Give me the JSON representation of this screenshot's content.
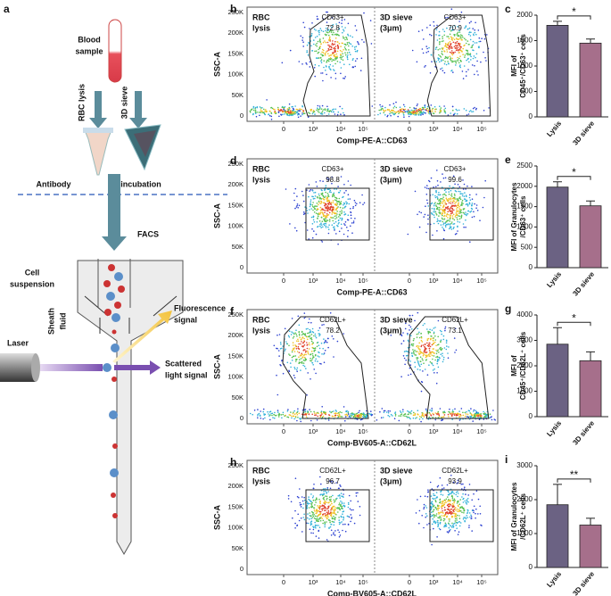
{
  "panel_a": {
    "label": "a",
    "blood_sample": [
      "Blood",
      "sample"
    ],
    "rbc_lysis": "RBC lysis",
    "sieve": "3D sieve",
    "antibody": "Antibody",
    "incubation": "incubation",
    "facs": "FACS",
    "cell_suspension": [
      "Cell",
      "suspension"
    ],
    "sheath_fluid": [
      "Sheath",
      "fluid"
    ],
    "fluorescence": [
      "Fluorescence",
      "signal"
    ],
    "laser": "Laser",
    "scattered": [
      "Scattered",
      "light signal"
    ]
  },
  "flow_panels": [
    {
      "label": "b",
      "y_label": "SSC-A",
      "x_label": "Comp-PE-A::CD63",
      "yticks": [
        "0",
        "50K",
        "100K",
        "150K",
        "200K",
        "250K"
      ],
      "xticks": [
        "0",
        "10³",
        "10⁴",
        "10⁵"
      ],
      "samples": [
        {
          "name": [
            "RBC",
            "lysis"
          ],
          "gate": "CD63+",
          "percent": 72.8
        },
        {
          "name": [
            "3D sieve",
            "(3μm)"
          ],
          "gate": "CD63+",
          "percent": 70.9
        }
      ]
    },
    {
      "label": "d",
      "y_label": "SSC-A",
      "x_label": "Comp-PE-A::CD63",
      "yticks": [
        "0",
        "50K",
        "100K",
        "150K",
        "200K",
        "250K"
      ],
      "xticks": [
        "0",
        "10³",
        "10⁴",
        "10⁵"
      ],
      "samples": [
        {
          "name": [
            "RBC",
            "lysis"
          ],
          "gate": "CD63+",
          "percent": 98.8
        },
        {
          "name": [
            "3D sieve",
            "(3μm)"
          ],
          "gate": "CD63+",
          "percent": 99.6
        }
      ]
    },
    {
      "label": "f",
      "y_label": "SSC-A",
      "x_label": "Comp-BV605-A::CD62L",
      "yticks": [
        "0",
        "50K",
        "100K",
        "150K",
        "200K",
        "250K"
      ],
      "xticks": [
        "0",
        "10³",
        "10⁴",
        "10⁵"
      ],
      "samples": [
        {
          "name": [
            "RBC",
            "lysis"
          ],
          "gate": "CD62L+",
          "percent": 78.2
        },
        {
          "name": [
            "3D sieve",
            "(3μm)"
          ],
          "gate": "CD62L+",
          "percent": 73.1
        }
      ]
    },
    {
      "label": "h",
      "y_label": "SSC-A",
      "x_label": "Comp-BV605-A::CD62L",
      "yticks": [
        "0",
        "50K",
        "100K",
        "150K",
        "200K",
        "250K"
      ],
      "xticks": [
        "0",
        "10³",
        "10⁴",
        "10⁵"
      ],
      "samples": [
        {
          "name": [
            "RBC",
            "lysis"
          ],
          "gate": "CD62L+",
          "percent": 96.7
        },
        {
          "name": [
            "3D sieve",
            "(3μm)"
          ],
          "gate": "CD62L+",
          "percent": 93.9
        }
      ]
    }
  ],
  "chart_data": [
    {
      "type": "bar",
      "label": "c",
      "y_label": [
        "MFI of",
        "CD45⁺/CD63⁺ cells"
      ],
      "categories": [
        "Lysis",
        "3D sieve"
      ],
      "values": [
        1800,
        1450
      ],
      "errors": [
        80,
        80
      ],
      "colors": [
        "#6b6283",
        "#a66f8b"
      ],
      "ylim": [
        0,
        2000
      ],
      "yticks": [
        0,
        500,
        1000,
        1500,
        2000
      ],
      "significance": "*"
    },
    {
      "type": "bar",
      "label": "e",
      "y_label": [
        "MFI of Granulocytes",
        "/CD63⁺ cells"
      ],
      "categories": [
        "Lysis",
        "3D sieve"
      ],
      "values": [
        1980,
        1520
      ],
      "errors": [
        130,
        120
      ],
      "colors": [
        "#6b6283",
        "#a66f8b"
      ],
      "ylim": [
        0,
        2500
      ],
      "yticks": [
        0,
        500,
        1000,
        1500,
        2000,
        2500
      ],
      "significance": "*"
    },
    {
      "type": "bar",
      "label": "g",
      "y_label": [
        "MFI of",
        "CD45⁺/CD62L⁺ cells"
      ],
      "categories": [
        "Lysis",
        "3D sieve"
      ],
      "values": [
        2850,
        2200
      ],
      "errors": [
        650,
        350
      ],
      "colors": [
        "#6b6283",
        "#a66f8b"
      ],
      "ylim": [
        0,
        4000
      ],
      "yticks": [
        0,
        1000,
        2000,
        3000,
        4000
      ],
      "significance": "*"
    },
    {
      "type": "bar",
      "label": "i",
      "y_label": [
        "MFI of Granulocytes",
        "/CD62L⁺ cells"
      ],
      "categories": [
        "Lysis",
        "3D sieve"
      ],
      "values": [
        1850,
        1250
      ],
      "errors": [
        600,
        200
      ],
      "colors": [
        "#6b6283",
        "#a66f8b"
      ],
      "ylim": [
        0,
        3000
      ],
      "yticks": [
        0,
        1000,
        2000,
        3000
      ],
      "significance": "**"
    }
  ]
}
